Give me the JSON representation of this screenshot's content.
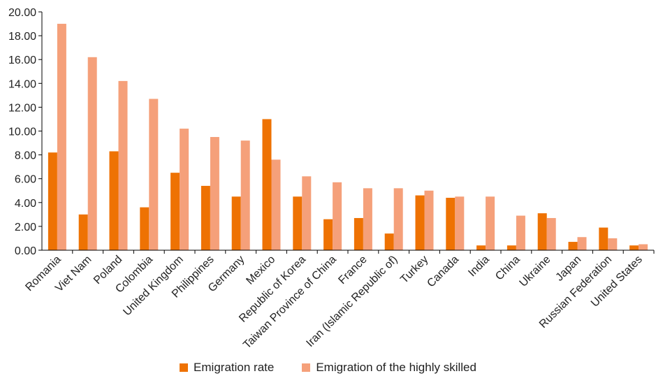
{
  "chart_data": {
    "type": "bar",
    "categories": [
      "Romania",
      "Viet Nam",
      "Poland",
      "Colombia",
      "United Kingdom",
      "Philippines",
      "Germany",
      "Mexico",
      "Republic of Korea",
      "Taiwan Province of China",
      "France",
      "Iran (Islamic Republic of)",
      "Turkey",
      "Canada",
      "India",
      "China",
      "Ukraine",
      "Japan",
      "Russian Federation",
      "United States"
    ],
    "series": [
      {
        "name": "Emigration rate",
        "color": "#ee7203",
        "values": [
          8.2,
          3.0,
          8.3,
          3.6,
          6.5,
          5.4,
          4.5,
          11.0,
          4.5,
          2.6,
          2.7,
          1.4,
          4.6,
          4.4,
          0.4,
          0.4,
          3.1,
          0.7,
          1.9,
          0.4
        ]
      },
      {
        "name": "Emigration of the highly skilled",
        "color": "#f5a07a",
        "values": [
          19.0,
          16.2,
          14.2,
          12.7,
          10.2,
          9.5,
          9.2,
          7.6,
          6.2,
          5.7,
          5.2,
          5.2,
          5.0,
          4.5,
          4.5,
          2.9,
          2.7,
          1.1,
          1.0,
          0.5
        ]
      }
    ],
    "y_ticks": [
      "0.00",
      "2.00",
      "4.00",
      "6.00",
      "8.00",
      "10.00",
      "12.00",
      "14.00",
      "16.00",
      "18.00",
      "20.00"
    ],
    "ylim": [
      0,
      20
    ],
    "grid": false,
    "legend_position": "bottom"
  }
}
